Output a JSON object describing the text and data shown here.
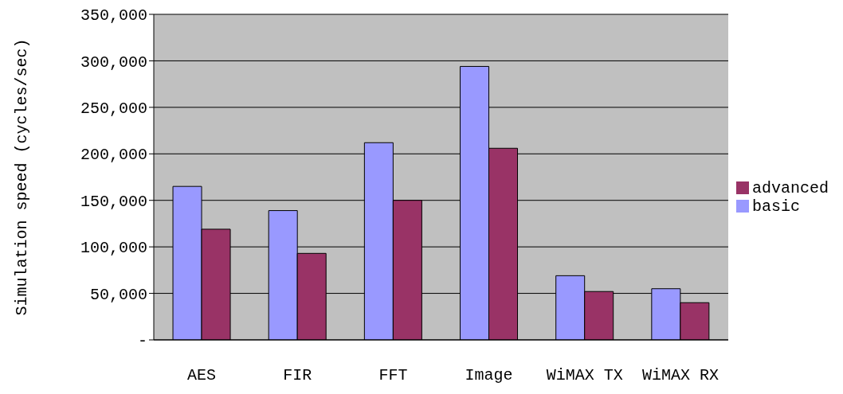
{
  "chart_data": {
    "type": "bar",
    "ylabel": "Simulation speed (cycles/sec)",
    "categories": [
      "AES",
      "FIR",
      "FFT",
      "Image",
      "WiMAX TX",
      "WiMAX RX"
    ],
    "series": [
      {
        "name": "basic",
        "color": "#9999ff",
        "values": [
          165000,
          139000,
          212000,
          294000,
          69000,
          55000
        ]
      },
      {
        "name": "advanced",
        "color": "#993366",
        "values": [
          119000,
          93000,
          150000,
          206000,
          52000,
          40000
        ]
      }
    ],
    "ylim": [
      0,
      350000
    ],
    "yticks": [
      {
        "value": 0,
        "label": "-"
      },
      {
        "value": 50000,
        "label": "50,000"
      },
      {
        "value": 100000,
        "label": "100,000"
      },
      {
        "value": 150000,
        "label": "150,000"
      },
      {
        "value": 200000,
        "label": "200,000"
      },
      {
        "value": 250000,
        "label": "250,000"
      },
      {
        "value": 300000,
        "label": "300,000"
      },
      {
        "value": 350000,
        "label": "350,000"
      }
    ],
    "grid": "y",
    "legend": "right"
  }
}
